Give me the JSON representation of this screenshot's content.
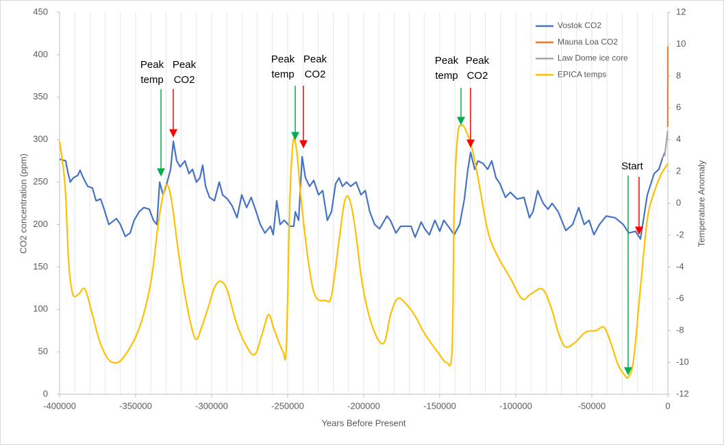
{
  "chart_data": {
    "type": "line",
    "xlabel": "Years Before Present",
    "ylabel": "CO2 concentration (ppm)",
    "y2label": "Temperature Anomaly",
    "xlim": [
      -400000,
      0
    ],
    "xticks": [
      -400000,
      -350000,
      -300000,
      -250000,
      -200000,
      -150000,
      -100000,
      -50000,
      0
    ],
    "xgrid": [
      -400000,
      -390000,
      -380000,
      -370000,
      -360000,
      -350000,
      -340000,
      -330000,
      -320000,
      -310000,
      -300000,
      -290000,
      -280000,
      -270000,
      -260000,
      -250000,
      -240000,
      -230000,
      -220000,
      -210000,
      -200000,
      -190000,
      -180000,
      -170000,
      -160000,
      -150000,
      -140000,
      -130000,
      -120000,
      -110000,
      -100000,
      -90000,
      -80000,
      -70000,
      -60000,
      -50000,
      -40000,
      -30000,
      -20000,
      -10000,
      0
    ],
    "ylim": [
      0,
      450
    ],
    "yticks": [
      0,
      50,
      100,
      150,
      200,
      250,
      300,
      350,
      400,
      450
    ],
    "y2lim": [
      -12,
      12
    ],
    "y2ticks": [
      -12,
      -10,
      -8,
      -6,
      -4,
      -2,
      0,
      2,
      4,
      6,
      8,
      10,
      12
    ],
    "legend": "top-right",
    "series": [
      {
        "name": "Vostok CO2",
        "color": "#4472c4",
        "x": [
          -400000,
          -396000,
          -394600,
          -393000,
          -391000,
          -388000,
          -386500,
          -384700,
          -381500,
          -378400,
          -376000,
          -373000,
          -370700,
          -367600,
          -362600,
          -360000,
          -356800,
          -353600,
          -351000,
          -347700,
          -344600,
          -341000,
          -338300,
          -336000,
          -334200,
          -332000,
          -329700,
          -327000,
          -325200,
          -323000,
          -320700,
          -317600,
          -314900,
          -312600,
          -310000,
          -307700,
          -305900,
          -304000,
          -301400,
          -298200,
          -295000,
          -292800,
          -289600,
          -286500,
          -283300,
          -280200,
          -277000,
          -274000,
          -270700,
          -268000,
          -265000,
          -261300,
          -259500,
          -257200,
          -255000,
          -252300,
          -248600,
          -246000,
          -245000,
          -242800,
          -240500,
          -238300,
          -235600,
          -232900,
          -229700,
          -227000,
          -223900,
          -221200,
          -218500,
          -216200,
          -214000,
          -211300,
          -208600,
          -205000,
          -201800,
          -199000,
          -196000,
          -192800,
          -189600,
          -184700,
          -182500,
          -178800,
          -175700,
          -168900,
          -166200,
          -162200,
          -159900,
          -156800,
          -153200,
          -150000,
          -147300,
          -143200,
          -140500,
          -136900,
          -133800,
          -131500,
          -129700,
          -127000,
          -124800,
          -121600,
          -118500,
          -115800,
          -113000,
          -110400,
          -106800,
          -103600,
          -99100,
          -94600,
          -91000,
          -88700,
          -85600,
          -82000,
          -78800,
          -76100,
          -72100,
          -67100,
          -62600,
          -58600,
          -55000,
          -51800,
          -48600,
          -45000,
          -40500,
          -34700,
          -29300,
          -25700,
          -21200,
          -18000,
          -13500,
          -9000,
          -5900,
          -3200,
          -1800
        ],
        "values": [
          277,
          275,
          262,
          250,
          255,
          258,
          264,
          256,
          245,
          243,
          228,
          230,
          218,
          200,
          207,
          200,
          186,
          190,
          205,
          215,
          220,
          218,
          205,
          200,
          250,
          235,
          247,
          265,
          298,
          275,
          268,
          275,
          260,
          265,
          250,
          255,
          270,
          245,
          232,
          228,
          250,
          235,
          230,
          222,
          208,
          235,
          220,
          232,
          215,
          200,
          190,
          198,
          188,
          228,
          200,
          205,
          198,
          198,
          215,
          205,
          280,
          255,
          245,
          252,
          235,
          240,
          205,
          215,
          248,
          255,
          245,
          250,
          245,
          250,
          235,
          240,
          215,
          200,
          195,
          210,
          205,
          190,
          198,
          198,
          185,
          203,
          195,
          188,
          205,
          192,
          205,
          195,
          188,
          200,
          230,
          265,
          285,
          265,
          275,
          272,
          265,
          275,
          255,
          248,
          232,
          238,
          230,
          232,
          208,
          215,
          240,
          225,
          218,
          225,
          215,
          193,
          200,
          220,
          200,
          205,
          188,
          200,
          210,
          208,
          200,
          190,
          192,
          183,
          235,
          260,
          265,
          280,
          285
        ]
      },
      {
        "name": "Mauna Loa CO2",
        "color": "#ed7d31",
        "x": [
          -60,
          0
        ],
        "values": [
          315,
          410
        ]
      },
      {
        "name": "Law Dome ice core",
        "color": "#a5a5a5",
        "x": [
          -4000,
          -2000,
          -100
        ],
        "values": [
          278,
          282,
          310
        ]
      },
      {
        "name": "EPICA temps",
        "color": "#ffc000",
        "axis": "y2",
        "smooth": true,
        "x": [
          -400000,
          -396400,
          -394100,
          -391400,
          -387400,
          -383300,
          -378400,
          -373900,
          -368000,
          -361700,
          -355900,
          -349100,
          -343700,
          -339200,
          -334700,
          -330200,
          -326600,
          -322100,
          -316700,
          -310800,
          -306300,
          -301800,
          -298200,
          -294100,
          -289600,
          -283800,
          -277000,
          -271600,
          -267100,
          -262600,
          -259000,
          -253200,
          -250900,
          -248600,
          -246400,
          -244100,
          -241000,
          -236500,
          -232000,
          -225200,
          -221200,
          -216200,
          -212600,
          -209500,
          -205900,
          -200500,
          -193700,
          -186900,
          -182400,
          -177900,
          -173400,
          -166700,
          -159900,
          -150900,
          -145500,
          -141900,
          -140500,
          -138300,
          -136000,
          -132900,
          -128400,
          -123900,
          -118500,
          -112600,
          -103600,
          -95900,
          -90100,
          -82400,
          -76600,
          -72100,
          -67600,
          -61700,
          -54100,
          -47300,
          -41900,
          -37400,
          -32900,
          -28400,
          -25700,
          -22500,
          -18000,
          -13500,
          -9000,
          -4500,
          0
        ],
        "values": [
          3.9,
          1.1,
          -3.6,
          -5.7,
          -5.7,
          -5.4,
          -7.0,
          -8.6,
          -9.8,
          -10.0,
          -9.4,
          -8.2,
          -6.6,
          -4.5,
          -1.0,
          1.1,
          0.3,
          -2.9,
          -6.2,
          -8.5,
          -7.7,
          -6.4,
          -5.3,
          -4.9,
          -5.5,
          -7.5,
          -9.0,
          -9.5,
          -8.3,
          -7.0,
          -7.9,
          -9.3,
          -9.0,
          0.1,
          3.9,
          3.3,
          0.1,
          -3.6,
          -5.8,
          -6.1,
          -5.8,
          -2.3,
          0.1,
          0.3,
          -1.4,
          -5.3,
          -7.9,
          -8.8,
          -7.0,
          -6.0,
          -6.2,
          -7.0,
          -8.2,
          -9.4,
          -10.0,
          -9.2,
          -0.1,
          4.2,
          4.9,
          4.6,
          3.3,
          1.1,
          -1.7,
          -3.2,
          -4.7,
          -6.0,
          -5.7,
          -5.4,
          -6.6,
          -8.1,
          -9.0,
          -8.8,
          -8.1,
          -8.0,
          -7.8,
          -8.8,
          -10.1,
          -10.8,
          -10.9,
          -9.8,
          -5.3,
          -1.0,
          0.7,
          1.8,
          2.5
        ]
      }
    ],
    "annotations": [
      {
        "lines": [
          "Peak",
          "temp"
        ],
        "color": "#00b050"
      },
      {
        "lines": [
          "Peak",
          "CO2"
        ],
        "color": "#ff0000"
      },
      {
        "lines": [
          "Peak",
          "temp"
        ],
        "color": "#00b050"
      },
      {
        "lines": [
          "Peak",
          "CO2"
        ],
        "color": "#ff0000"
      },
      {
        "lines": [
          "Peak",
          "temp"
        ],
        "color": "#00b050"
      },
      {
        "lines": [
          "Peak",
          "CO2"
        ],
        "color": "#ff0000"
      },
      {
        "lines": [
          "Start"
        ],
        "color": "#00b050"
      }
    ]
  }
}
